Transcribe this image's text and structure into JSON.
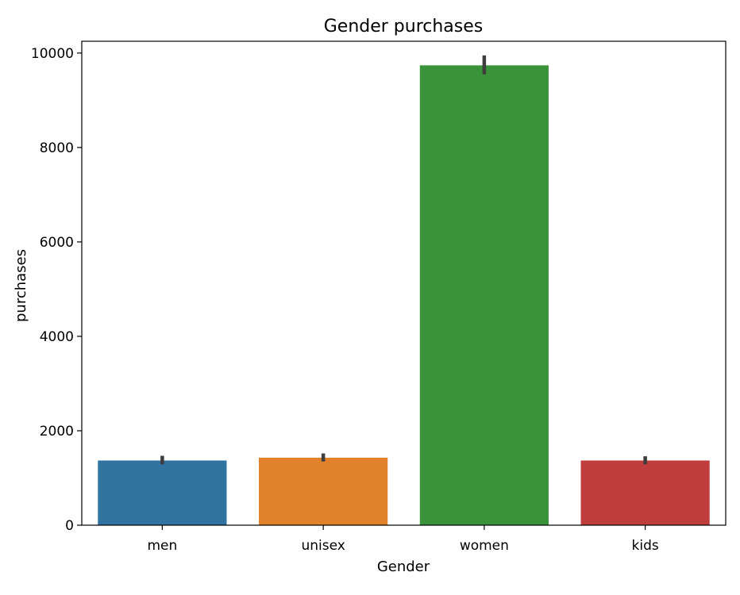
{
  "chart_data": {
    "type": "bar",
    "title": "Gender purchases",
    "xlabel": "Gender",
    "ylabel": "purchases",
    "categories": [
      "men",
      "unisex",
      "women",
      "kids"
    ],
    "values": [
      1370,
      1430,
      9740,
      1370
    ],
    "error_low": [
      1290,
      1350,
      9550,
      1290
    ],
    "error_high": [
      1470,
      1520,
      9950,
      1460
    ],
    "colors": [
      "#3274a1",
      "#e1812c",
      "#3a923a",
      "#c03d3e"
    ],
    "error_color": "#3d3d3d",
    "ylim": [
      0,
      10250
    ],
    "yticks": [
      0,
      2000,
      4000,
      6000,
      8000,
      10000
    ],
    "grid": false,
    "legend": "none"
  }
}
